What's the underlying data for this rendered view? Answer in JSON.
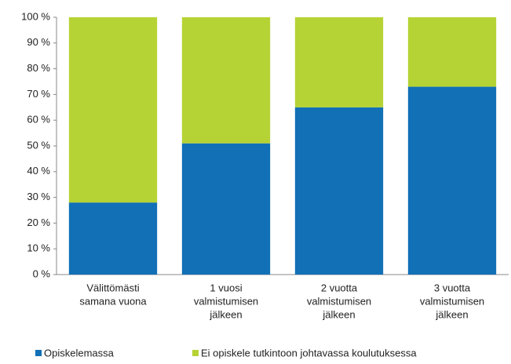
{
  "chart_data": {
    "type": "stacked_bar",
    "categories": [
      [
        "Välittömästi",
        "samana vuona"
      ],
      [
        "1 vuosi",
        "valmistumisen",
        "jälkeen"
      ],
      [
        "2 vuotta",
        "valmistumisen",
        "jälkeen"
      ],
      [
        "3 vuotta",
        "valmistumisen",
        "jälkeen"
      ]
    ],
    "series": [
      {
        "name": "Opiskelemassa",
        "color": "#1170b6",
        "values": [
          28,
          51,
          65,
          73
        ]
      },
      {
        "name": "Ei opiskele tutkintoon johtavassa koulutuksessa",
        "color": "#b5d334",
        "values": [
          72,
          49,
          35,
          27
        ]
      }
    ],
    "ylim": [
      0,
      100
    ],
    "yticks": [
      {
        "value": 0,
        "label": "0 %"
      },
      {
        "value": 10,
        "label": "10 %"
      },
      {
        "value": 20,
        "label": "20 %"
      },
      {
        "value": 30,
        "label": "30 %"
      },
      {
        "value": 40,
        "label": "40 %"
      },
      {
        "value": 50,
        "label": "50 %"
      },
      {
        "value": 60,
        "label": "60 %"
      },
      {
        "value": 70,
        "label": "70 %"
      },
      {
        "value": 80,
        "label": "80 %"
      },
      {
        "value": 90,
        "label": "90 %"
      },
      {
        "value": 100,
        "label": "100 %"
      }
    ],
    "legend": "bottom"
  }
}
